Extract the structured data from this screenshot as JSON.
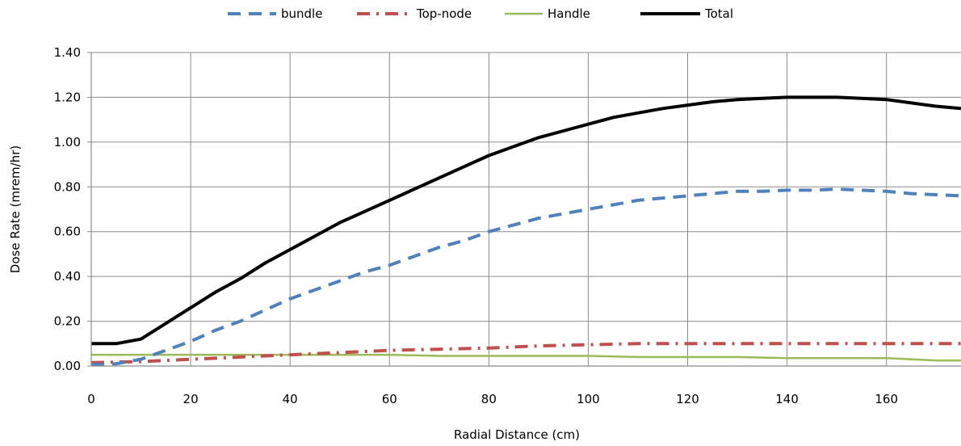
{
  "chart_data": {
    "type": "line",
    "title": "",
    "xlabel": "Radial Distance  (cm)",
    "ylabel": "Dose Rate (mrem/hr)",
    "xlim": [
      0,
      175
    ],
    "ylim": [
      0,
      1.4
    ],
    "x_ticks": [
      0,
      20,
      40,
      60,
      80,
      100,
      120,
      140,
      160
    ],
    "x_tick_labels": [
      "0",
      "20",
      "40",
      "60",
      "80",
      "100",
      "120",
      "140",
      "160"
    ],
    "y_ticks": [
      0,
      0.2,
      0.4,
      0.6,
      0.8,
      1.0,
      1.2,
      1.4
    ],
    "y_tick_labels": [
      "0.00",
      "0.20",
      "0.40",
      "0.60",
      "0.80",
      "1.00",
      "1.20",
      "1.40"
    ],
    "grid": true,
    "legend_position": "top",
    "series": [
      {
        "name": "bundle",
        "color": "#4f81bd",
        "style": "dashed",
        "x": [
          0,
          5,
          10,
          15,
          20,
          25,
          30,
          35,
          40,
          45,
          50,
          55,
          60,
          65,
          70,
          75,
          80,
          85,
          90,
          95,
          100,
          105,
          110,
          115,
          120,
          125,
          130,
          135,
          140,
          145,
          150,
          155,
          160,
          165,
          170,
          175
        ],
        "y": [
          0.005,
          0.01,
          0.03,
          0.07,
          0.11,
          0.16,
          0.2,
          0.25,
          0.3,
          0.34,
          0.38,
          0.42,
          0.45,
          0.49,
          0.53,
          0.56,
          0.6,
          0.63,
          0.66,
          0.68,
          0.7,
          0.72,
          0.74,
          0.75,
          0.76,
          0.77,
          0.78,
          0.78,
          0.785,
          0.785,
          0.79,
          0.785,
          0.78,
          0.77,
          0.765,
          0.76
        ]
      },
      {
        "name": "Top-node",
        "color": "#c0504d",
        "style": "dashdot",
        "x": [
          0,
          10,
          20,
          30,
          40,
          50,
          60,
          70,
          80,
          90,
          100,
          110,
          120,
          130,
          140,
          150,
          160,
          175
        ],
        "y": [
          0.015,
          0.02,
          0.03,
          0.04,
          0.05,
          0.06,
          0.07,
          0.075,
          0.08,
          0.09,
          0.095,
          0.1,
          0.1,
          0.1,
          0.1,
          0.1,
          0.1,
          0.1
        ]
      },
      {
        "name": "Handle",
        "color": "#9bbb59",
        "style": "solid-thin",
        "x": [
          0,
          10,
          20,
          30,
          40,
          50,
          60,
          70,
          80,
          90,
          100,
          110,
          120,
          130,
          140,
          150,
          160,
          170,
          175
        ],
        "y": [
          0.05,
          0.05,
          0.05,
          0.05,
          0.05,
          0.05,
          0.05,
          0.045,
          0.045,
          0.045,
          0.045,
          0.04,
          0.04,
          0.04,
          0.035,
          0.035,
          0.035,
          0.025,
          0.025
        ]
      },
      {
        "name": "Total",
        "color": "#000000",
        "style": "solid-thick",
        "x": [
          0,
          5,
          10,
          15,
          20,
          25,
          30,
          35,
          40,
          45,
          50,
          55,
          60,
          65,
          70,
          75,
          80,
          85,
          90,
          95,
          100,
          105,
          110,
          115,
          120,
          125,
          130,
          135,
          140,
          145,
          150,
          155,
          160,
          165,
          170,
          175
        ],
        "y": [
          0.1,
          0.1,
          0.12,
          0.19,
          0.26,
          0.33,
          0.39,
          0.46,
          0.52,
          0.58,
          0.64,
          0.69,
          0.74,
          0.79,
          0.84,
          0.89,
          0.94,
          0.98,
          1.02,
          1.05,
          1.08,
          1.11,
          1.13,
          1.15,
          1.165,
          1.18,
          1.19,
          1.195,
          1.2,
          1.2,
          1.2,
          1.195,
          1.19,
          1.175,
          1.16,
          1.15
        ]
      }
    ]
  }
}
